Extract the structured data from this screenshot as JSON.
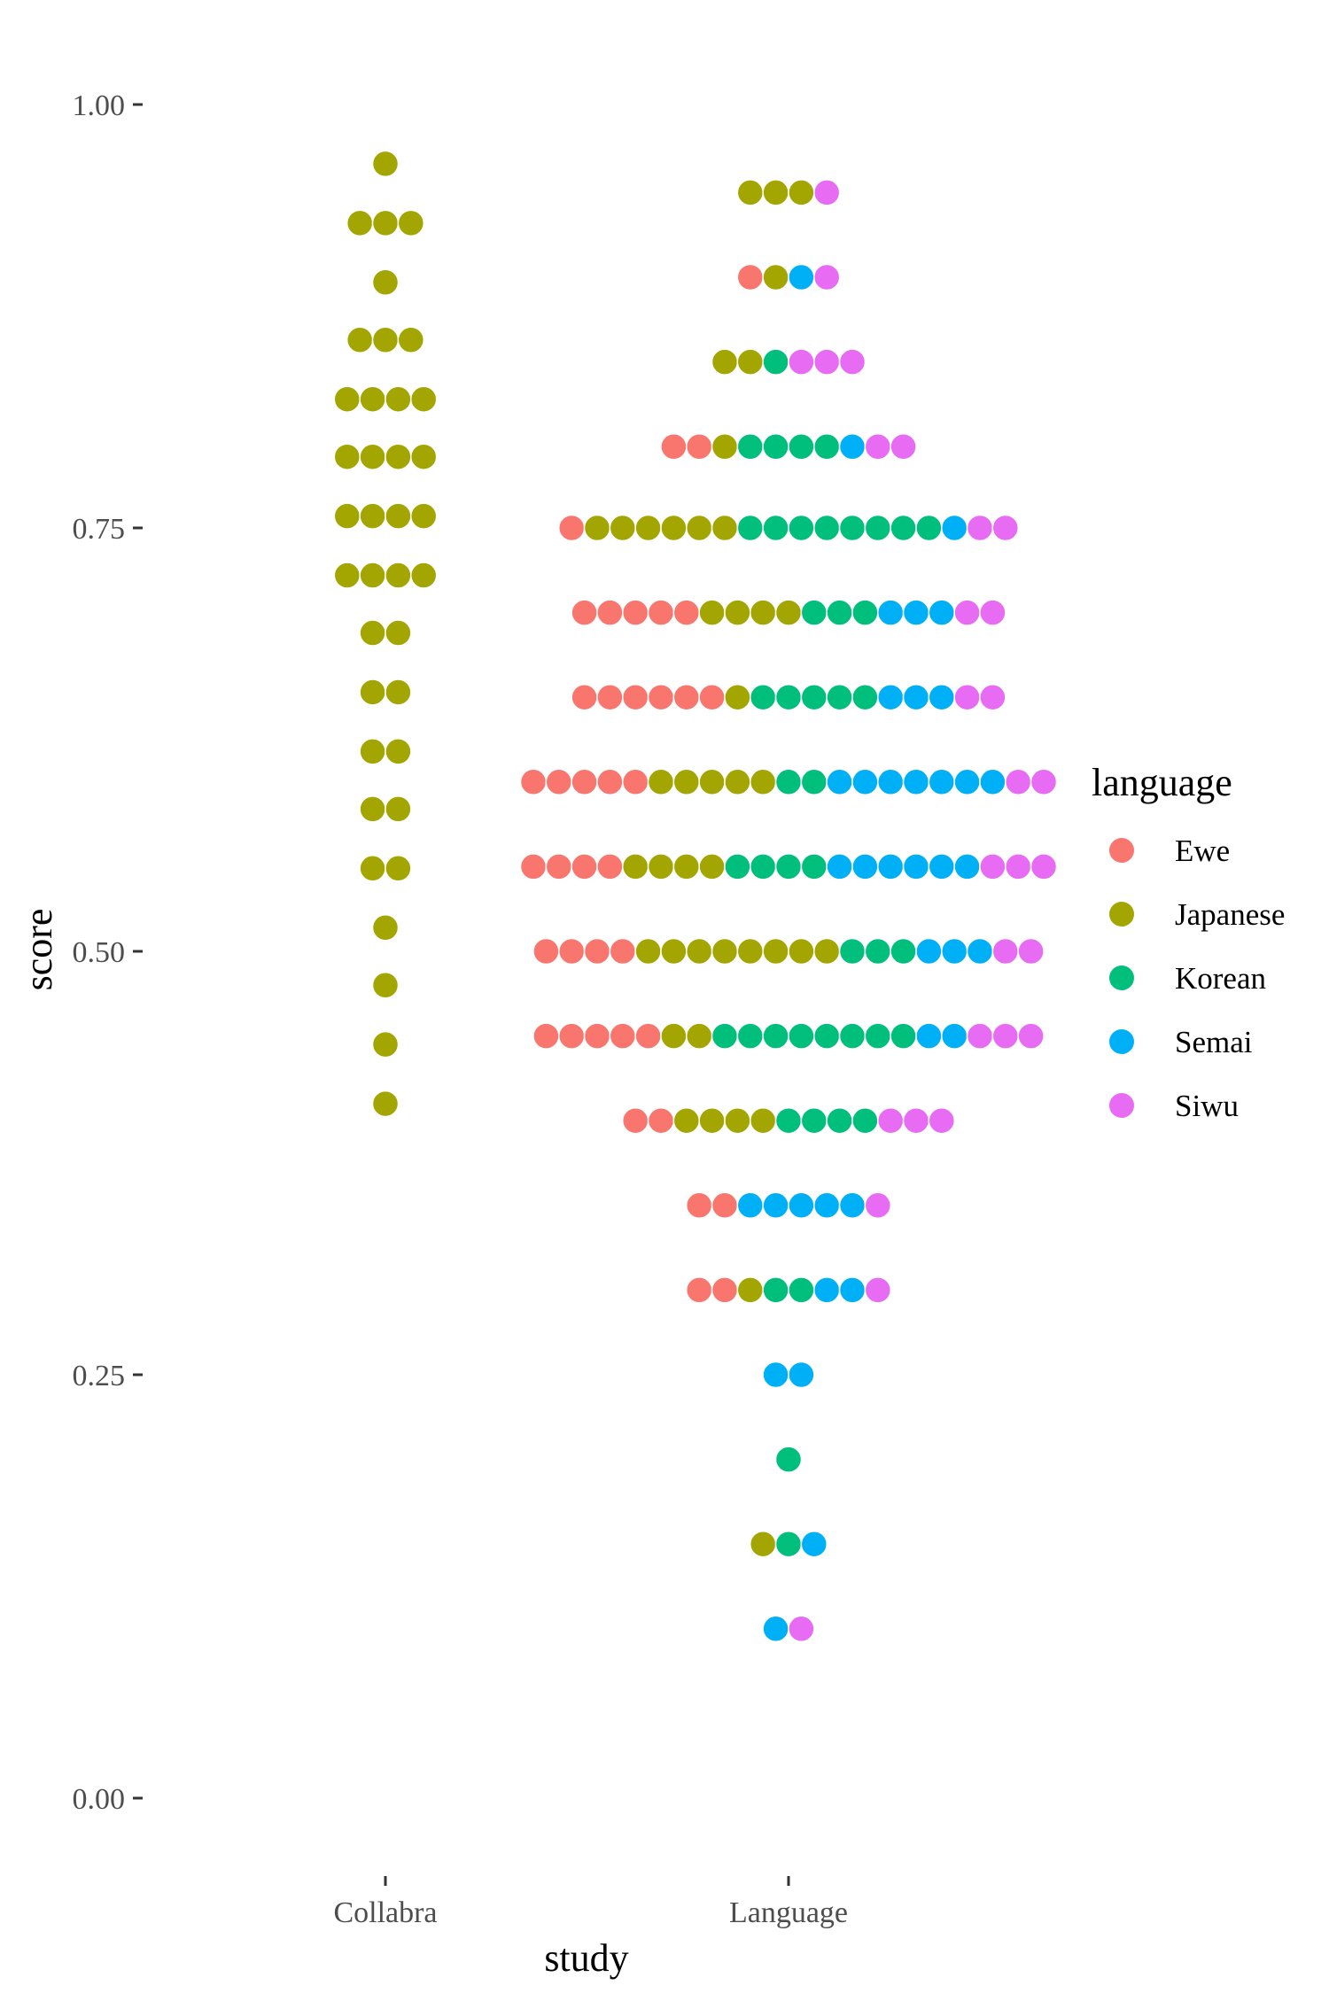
{
  "chart_data": {
    "type": "scatter",
    "subtype": "dotplot",
    "xlabel": "study",
    "ylabel": "score",
    "categories": [
      "Collabra",
      "Language"
    ],
    "ylim": [
      -0.05,
      1.05
    ],
    "yticks": [
      {
        "value": 0.0,
        "label": "0.00"
      },
      {
        "value": 0.25,
        "label": "0.25"
      },
      {
        "value": 0.5,
        "label": "0.50"
      },
      {
        "value": 0.75,
        "label": "0.75"
      },
      {
        "value": 1.0,
        "label": "1.00"
      }
    ],
    "grid": false,
    "legend": {
      "title": "language",
      "position": "right",
      "entries": [
        {
          "name": "Ewe",
          "color": "#F8766D"
        },
        {
          "name": "Japanese",
          "color": "#A3A500"
        },
        {
          "name": "Korean",
          "color": "#00BF7D"
        },
        {
          "name": "Semai",
          "color": "#00B0F6"
        },
        {
          "name": "Siwu",
          "color": "#E76BF3"
        }
      ]
    },
    "series": [
      {
        "category": "Collabra",
        "bins": [
          {
            "y": 0.965,
            "counts": {
              "Japanese": 1
            }
          },
          {
            "y": 0.93,
            "counts": {
              "Japanese": 3
            }
          },
          {
            "y": 0.895,
            "counts": {
              "Japanese": 1
            }
          },
          {
            "y": 0.861,
            "counts": {
              "Japanese": 3
            }
          },
          {
            "y": 0.826,
            "counts": {
              "Japanese": 4
            }
          },
          {
            "y": 0.792,
            "counts": {
              "Japanese": 4
            }
          },
          {
            "y": 0.757,
            "counts": {
              "Japanese": 4
            }
          },
          {
            "y": 0.722,
            "counts": {
              "Japanese": 4
            }
          },
          {
            "y": 0.688,
            "counts": {
              "Japanese": 2
            }
          },
          {
            "y": 0.653,
            "counts": {
              "Japanese": 2
            }
          },
          {
            "y": 0.618,
            "counts": {
              "Japanese": 2
            }
          },
          {
            "y": 0.584,
            "counts": {
              "Japanese": 2
            }
          },
          {
            "y": 0.549,
            "counts": {
              "Japanese": 2
            }
          },
          {
            "y": 0.514,
            "counts": {
              "Japanese": 1
            }
          },
          {
            "y": 0.48,
            "counts": {
              "Japanese": 1
            }
          },
          {
            "y": 0.445,
            "counts": {
              "Japanese": 1
            }
          },
          {
            "y": 0.41,
            "counts": {
              "Japanese": 1
            }
          }
        ]
      },
      {
        "category": "Language",
        "bins": [
          {
            "y": 0.948,
            "counts": {
              "Japanese": 3,
              "Siwu": 1
            }
          },
          {
            "y": 0.898,
            "counts": {
              "Ewe": 1,
              "Japanese": 1,
              "Semai": 1,
              "Siwu": 1
            }
          },
          {
            "y": 0.848,
            "counts": {
              "Japanese": 2,
              "Korean": 1,
              "Siwu": 3
            }
          },
          {
            "y": 0.798,
            "counts": {
              "Ewe": 2,
              "Japanese": 1,
              "Korean": 4,
              "Semai": 1,
              "Siwu": 2
            }
          },
          {
            "y": 0.75,
            "counts": {
              "Ewe": 1,
              "Japanese": 6,
              "Korean": 8,
              "Semai": 1,
              "Siwu": 2
            }
          },
          {
            "y": 0.7,
            "counts": {
              "Ewe": 5,
              "Japanese": 4,
              "Korean": 3,
              "Semai": 3,
              "Siwu": 2
            }
          },
          {
            "y": 0.65,
            "counts": {
              "Ewe": 6,
              "Japanese": 1,
              "Korean": 5,
              "Semai": 3,
              "Siwu": 2
            }
          },
          {
            "y": 0.6,
            "counts": {
              "Ewe": 5,
              "Japanese": 5,
              "Korean": 2,
              "Semai": 7,
              "Siwu": 2
            }
          },
          {
            "y": 0.55,
            "counts": {
              "Ewe": 4,
              "Japanese": 4,
              "Korean": 4,
              "Semai": 6,
              "Siwu": 3
            }
          },
          {
            "y": 0.5,
            "counts": {
              "Ewe": 4,
              "Japanese": 8,
              "Korean": 3,
              "Semai": 3,
              "Siwu": 2
            }
          },
          {
            "y": 0.45,
            "counts": {
              "Ewe": 5,
              "Japanese": 2,
              "Korean": 8,
              "Semai": 2,
              "Siwu": 3
            }
          },
          {
            "y": 0.4,
            "counts": {
              "Ewe": 2,
              "Japanese": 4,
              "Korean": 4,
              "Siwu": 3
            }
          },
          {
            "y": 0.35,
            "counts": {
              "Ewe": 2,
              "Semai": 5,
              "Siwu": 1
            }
          },
          {
            "y": 0.3,
            "counts": {
              "Ewe": 2,
              "Japanese": 1,
              "Korean": 2,
              "Semai": 2,
              "Siwu": 1
            }
          },
          {
            "y": 0.25,
            "counts": {
              "Semai": 2
            }
          },
          {
            "y": 0.2,
            "counts": {
              "Korean": 1
            }
          },
          {
            "y": 0.15,
            "counts": {
              "Japanese": 1,
              "Korean": 1,
              "Semai": 1
            }
          },
          {
            "y": 0.1,
            "counts": {
              "Semai": 1,
              "Siwu": 1
            }
          }
        ]
      }
    ]
  }
}
